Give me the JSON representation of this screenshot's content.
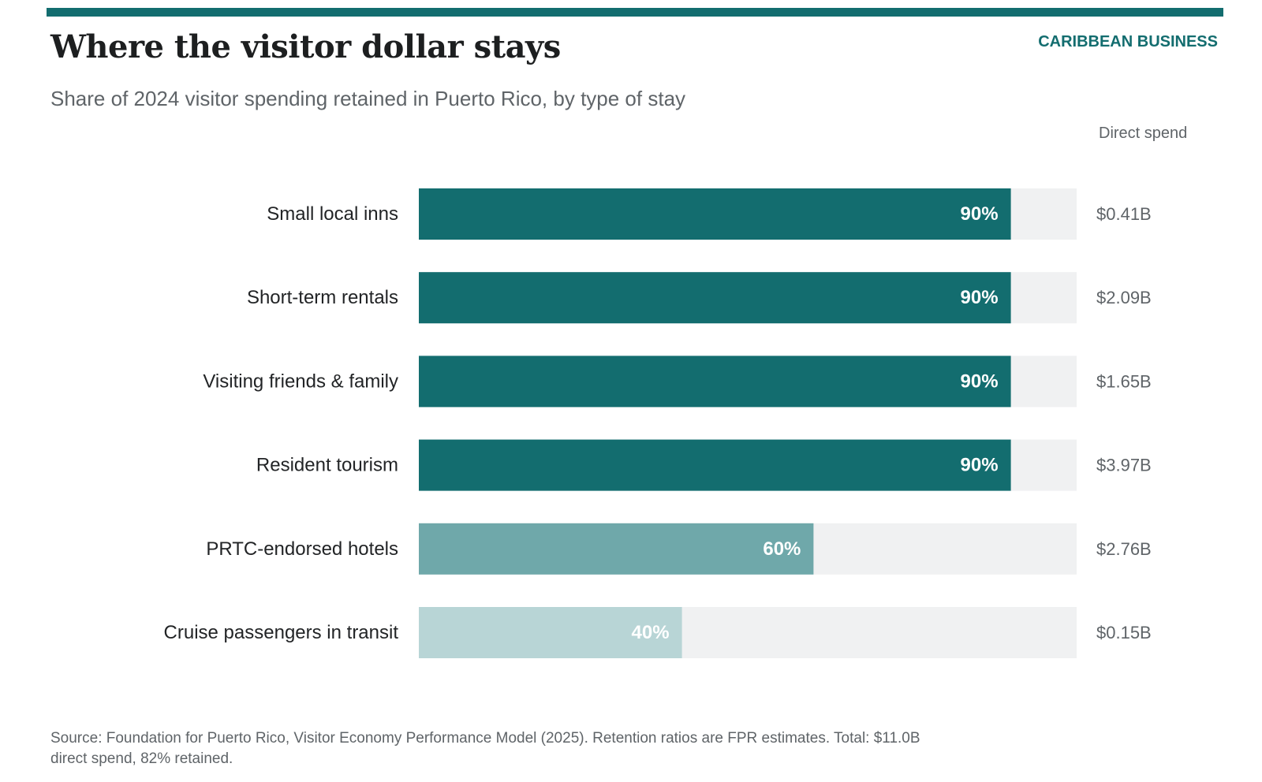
{
  "header": {
    "title": "Where the visitor dollar stays",
    "brand": "CARIBBEAN BUSINESS",
    "subtitle": "Share of 2024 visitor spending retained in Puerto Rico, by type of stay"
  },
  "column_header": "Direct spend",
  "footer": {
    "source": "Source: Foundation for Puerto Rico, Visitor Economy Performance Model (2025). Retention ratios are FPR estimates. Total: $11.0B direct spend, 82% retained."
  },
  "colors": {
    "accent": "#136d6f",
    "high": "#136d6f",
    "mid": "#6fa8aa",
    "low": "#b8d5d6",
    "track": "#f0f1f2"
  },
  "chart_data": {
    "type": "bar",
    "orientation": "horizontal",
    "title": "Where the visitor dollar stays",
    "subtitle": "Share of 2024 visitor spending retained in Puerto Rico, by type of stay",
    "categories": [
      "Small local inns",
      "Short-term rentals",
      "Visiting friends & family",
      "Resident tourism",
      "PRTC-endorsed hotels",
      "Cruise passengers in transit"
    ],
    "values": [
      90,
      90,
      90,
      90,
      60,
      40
    ],
    "value_labels": [
      "90%",
      "90%",
      "90%",
      "90%",
      "60%",
      "40%"
    ],
    "direct_spend": [
      "$0.41B",
      "$2.09B",
      "$1.65B",
      "$3.97B",
      "$2.76B",
      "$0.15B"
    ],
    "xlim": [
      0,
      100
    ],
    "grid": false,
    "legend": "none"
  }
}
